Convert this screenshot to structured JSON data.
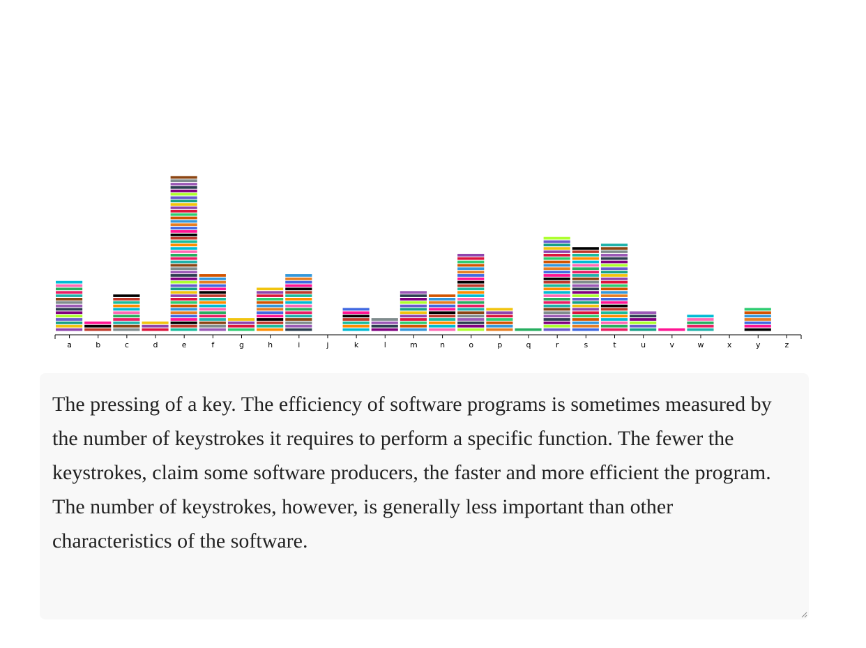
{
  "chart_data": {
    "type": "bar",
    "categories": [
      "a",
      "b",
      "c",
      "d",
      "e",
      "f",
      "g",
      "h",
      "i",
      "j",
      "k",
      "l",
      "m",
      "n",
      "o",
      "p",
      "q",
      "r",
      "s",
      "t",
      "u",
      "v",
      "w",
      "x",
      "y",
      "z"
    ],
    "values": [
      15,
      3,
      11,
      3,
      46,
      17,
      4,
      13,
      17,
      0,
      7,
      4,
      12,
      11,
      23,
      7,
      1,
      28,
      25,
      26,
      6,
      1,
      5,
      0,
      7,
      0
    ],
    "title": "",
    "xlabel": "",
    "ylabel": "",
    "ylim": [
      0,
      46
    ],
    "stacked_segments": true,
    "palette": [
      "#8e44ad",
      "#e67e22",
      "#1abc9c",
      "#e91e63",
      "#2c3e50",
      "#f1c40f",
      "#3498db",
      "#c0392b",
      "#27ae60",
      "#9b59b6",
      "#16a085",
      "#d35400",
      "#000000",
      "#ff69b4",
      "#7f8c8d",
      "#6a5acd",
      "#2ecc71",
      "#ff1493",
      "#00bcd4",
      "#8b4513",
      "#adff2f",
      "#dc143c",
      "#4169e1",
      "#ff8c00",
      "#20b2aa",
      "#800080"
    ]
  },
  "definition": {
    "text": "The pressing of a key. The efficiency of software programs is sometimes measured by the number of keystrokes it requires to perform a specific function. The fewer the keystrokes, claim some software producers, the faster and more efficient the program. The number of keystrokes, however, is generally less important than other characteristics of the software."
  }
}
